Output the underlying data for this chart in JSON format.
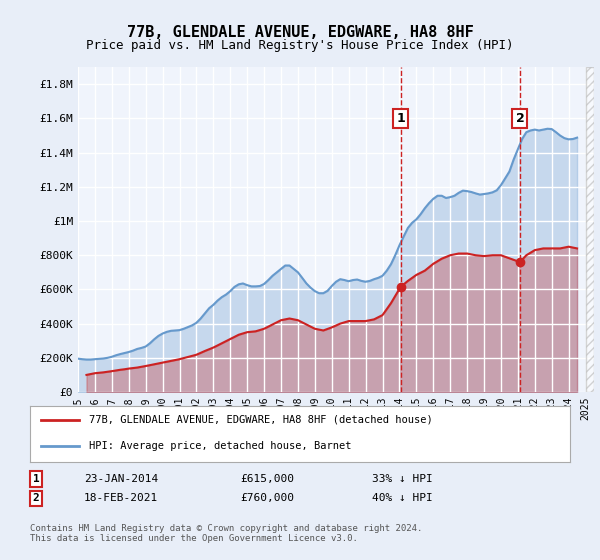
{
  "title": "77B, GLENDALE AVENUE, EDGWARE, HA8 8HF",
  "subtitle": "Price paid vs. HM Land Registry's House Price Index (HPI)",
  "ylabel_ticks": [
    "£0",
    "£200K",
    "£400K",
    "£600K",
    "£800K",
    "£1M",
    "£1.2M",
    "£1.4M",
    "£1.6M",
    "£1.8M"
  ],
  "ytick_values": [
    0,
    200000,
    400000,
    600000,
    800000,
    1000000,
    1200000,
    1400000,
    1600000,
    1800000
  ],
  "ylim": [
    0,
    1900000
  ],
  "xlim_start": 1995.0,
  "xlim_end": 2025.5,
  "background_color": "#e8eef8",
  "plot_bg_color": "#f0f4fc",
  "grid_color": "#ffffff",
  "hpi_color": "#6699cc",
  "price_color": "#cc2222",
  "marker1_x": 2014.07,
  "marker1_y": 615000,
  "marker1_label": "1",
  "marker1_date": "23-JAN-2014",
  "marker1_price": "£615,000",
  "marker1_hpi": "33% ↓ HPI",
  "marker2_x": 2021.12,
  "marker2_y": 760000,
  "marker2_label": "2",
  "marker2_date": "18-FEB-2021",
  "marker2_price": "£760,000",
  "marker2_hpi": "40% ↓ HPI",
  "legend_label_price": "77B, GLENDALE AVENUE, EDGWARE, HA8 8HF (detached house)",
  "legend_label_hpi": "HPI: Average price, detached house, Barnet",
  "footer": "Contains HM Land Registry data © Crown copyright and database right 2024.\nThis data is licensed under the Open Government Licence v3.0.",
  "hpi_data_x": [
    1995.0,
    1995.25,
    1995.5,
    1995.75,
    1996.0,
    1996.25,
    1996.5,
    1996.75,
    1997.0,
    1997.25,
    1997.5,
    1997.75,
    1998.0,
    1998.25,
    1998.5,
    1998.75,
    1999.0,
    1999.25,
    1999.5,
    1999.75,
    2000.0,
    2000.25,
    2000.5,
    2000.75,
    2001.0,
    2001.25,
    2001.5,
    2001.75,
    2002.0,
    2002.25,
    2002.5,
    2002.75,
    2003.0,
    2003.25,
    2003.5,
    2003.75,
    2004.0,
    2004.25,
    2004.5,
    2004.75,
    2005.0,
    2005.25,
    2005.5,
    2005.75,
    2006.0,
    2006.25,
    2006.5,
    2006.75,
    2007.0,
    2007.25,
    2007.5,
    2007.75,
    2008.0,
    2008.25,
    2008.5,
    2008.75,
    2009.0,
    2009.25,
    2009.5,
    2009.75,
    2010.0,
    2010.25,
    2010.5,
    2010.75,
    2011.0,
    2011.25,
    2011.5,
    2011.75,
    2012.0,
    2012.25,
    2012.5,
    2012.75,
    2013.0,
    2013.25,
    2013.5,
    2013.75,
    2014.0,
    2014.25,
    2014.5,
    2014.75,
    2015.0,
    2015.25,
    2015.5,
    2015.75,
    2016.0,
    2016.25,
    2016.5,
    2016.75,
    2017.0,
    2017.25,
    2017.5,
    2017.75,
    2018.0,
    2018.25,
    2018.5,
    2018.75,
    2019.0,
    2019.25,
    2019.5,
    2019.75,
    2020.0,
    2020.25,
    2020.5,
    2020.75,
    2021.0,
    2021.25,
    2021.5,
    2021.75,
    2022.0,
    2022.25,
    2022.5,
    2022.75,
    2023.0,
    2023.25,
    2023.5,
    2023.75,
    2024.0,
    2024.25,
    2024.5
  ],
  "hpi_data_y": [
    195000,
    192000,
    190000,
    190000,
    192000,
    194000,
    196000,
    200000,
    206000,
    215000,
    222000,
    228000,
    234000,
    242000,
    252000,
    258000,
    266000,
    285000,
    308000,
    328000,
    342000,
    352000,
    358000,
    360000,
    362000,
    370000,
    380000,
    390000,
    405000,
    430000,
    460000,
    490000,
    510000,
    535000,
    555000,
    570000,
    590000,
    615000,
    630000,
    635000,
    625000,
    618000,
    618000,
    620000,
    632000,
    655000,
    680000,
    700000,
    720000,
    740000,
    740000,
    720000,
    700000,
    668000,
    635000,
    610000,
    590000,
    578000,
    578000,
    592000,
    620000,
    645000,
    660000,
    655000,
    648000,
    655000,
    658000,
    650000,
    645000,
    650000,
    660000,
    668000,
    680000,
    710000,
    748000,
    800000,
    858000,
    910000,
    960000,
    990000,
    1010000,
    1040000,
    1075000,
    1105000,
    1130000,
    1148000,
    1148000,
    1135000,
    1140000,
    1148000,
    1165000,
    1178000,
    1175000,
    1170000,
    1162000,
    1155000,
    1158000,
    1162000,
    1168000,
    1180000,
    1210000,
    1250000,
    1290000,
    1360000,
    1420000,
    1480000,
    1520000,
    1530000,
    1535000,
    1530000,
    1535000,
    1540000,
    1538000,
    1520000,
    1500000,
    1485000,
    1478000,
    1480000,
    1488000
  ],
  "price_data_x": [
    1995.5,
    1996.0,
    1996.5,
    1997.0,
    1997.5,
    1997.75,
    1998.0,
    1998.5,
    1999.0,
    1999.5,
    2000.0,
    2000.5,
    2001.0,
    2001.5,
    2002.0,
    2002.5,
    2003.0,
    2003.5,
    2004.0,
    2004.5,
    2005.0,
    2005.5,
    2006.0,
    2006.5,
    2007.0,
    2007.5,
    2008.0,
    2008.5,
    2009.0,
    2009.5,
    2010.0,
    2010.5,
    2011.0,
    2011.5,
    2012.0,
    2012.5,
    2013.0,
    2013.5,
    2014.07,
    2014.5,
    2015.0,
    2015.5,
    2016.0,
    2016.5,
    2017.0,
    2017.5,
    2018.0,
    2018.5,
    2019.0,
    2019.5,
    2020.0,
    2021.12,
    2021.5,
    2022.0,
    2022.5,
    2023.0,
    2023.5,
    2024.0,
    2024.5
  ],
  "price_data_y": [
    100000,
    110000,
    115000,
    122000,
    130000,
    133000,
    137000,
    143000,
    152000,
    162000,
    172000,
    182000,
    192000,
    205000,
    218000,
    240000,
    260000,
    285000,
    310000,
    335000,
    350000,
    355000,
    370000,
    395000,
    420000,
    430000,
    420000,
    395000,
    370000,
    360000,
    378000,
    400000,
    415000,
    415000,
    415000,
    425000,
    450000,
    520000,
    615000,
    650000,
    685000,
    710000,
    750000,
    780000,
    800000,
    810000,
    810000,
    800000,
    795000,
    800000,
    800000,
    760000,
    800000,
    830000,
    840000,
    840000,
    840000,
    850000,
    840000
  ]
}
